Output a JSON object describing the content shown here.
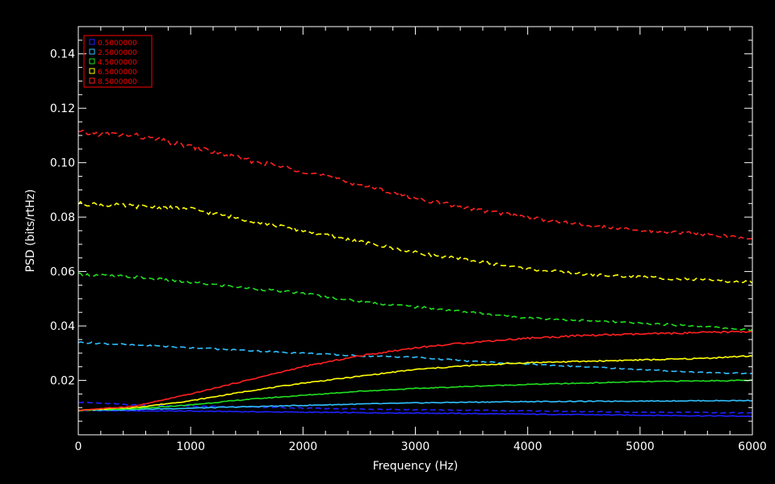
{
  "chart_data": {
    "type": "line",
    "title": "",
    "xlabel": "Frequency (Hz)",
    "ylabel": "PSD (bits/rtHz)",
    "xlim": [
      0,
      6000
    ],
    "ylim": [
      0,
      0.15
    ],
    "grid": false,
    "background": "#000000",
    "axis_color": "#ffffff",
    "x_ticks": [
      0,
      1000,
      2000,
      3000,
      4000,
      5000,
      6000
    ],
    "x_tick_labels": [
      "0",
      "1000",
      "2000",
      "3000",
      "4000",
      "5000",
      "6000"
    ],
    "y_ticks": [
      0.02,
      0.04,
      0.06,
      0.08,
      0.1,
      0.12,
      0.14
    ],
    "y_tick_labels": [
      "0.02",
      "0.04",
      "0.06",
      "0.08",
      "0.10",
      "0.12",
      "0.14"
    ],
    "legend": {
      "placement": "top-left",
      "border_color": "#ff0000",
      "text_color": "#ff0000",
      "entries": [
        {
          "label": "0.5000000",
          "color": "#2020ff"
        },
        {
          "label": "2.5000000",
          "color": "#30c0ff"
        },
        {
          "label": "4.5000000",
          "color": "#20e020"
        },
        {
          "label": "6.5000000",
          "color": "#ffff00"
        },
        {
          "label": "8.5000000",
          "color": "#ff2020"
        }
      ]
    },
    "x": [
      0,
      500,
      1000,
      1500,
      2000,
      2500,
      3000,
      3500,
      4000,
      4500,
      5000,
      5500,
      6000
    ],
    "series": [
      {
        "name": "0.5000000",
        "style": "solid",
        "color": "#2020ff",
        "values": [
          0.009,
          0.0088,
          0.0087,
          0.0085,
          0.0083,
          0.0081,
          0.008,
          0.0078,
          0.0076,
          0.0074,
          0.0072,
          0.007,
          0.0068
        ]
      },
      {
        "name": "0.5000000",
        "style": "dashed",
        "color": "#2020ff",
        "values": [
          0.012,
          0.011,
          0.0105,
          0.0102,
          0.0098,
          0.0095,
          0.0092,
          0.009,
          0.0088,
          0.0085,
          0.0083,
          0.0082,
          0.008
        ]
      },
      {
        "name": "2.5000000",
        "style": "solid",
        "color": "#30c0ff",
        "values": [
          0.009,
          0.0093,
          0.0098,
          0.0103,
          0.0108,
          0.0113,
          0.0117,
          0.012,
          0.0122,
          0.0123,
          0.0124,
          0.0125,
          0.0126
        ]
      },
      {
        "name": "2.5000000",
        "style": "dashed",
        "color": "#30c0ff",
        "values": [
          0.034,
          0.033,
          0.032,
          0.031,
          0.03,
          0.029,
          0.0285,
          0.027,
          0.026,
          0.025,
          0.024,
          0.023,
          0.0225
        ]
      },
      {
        "name": "4.5000000",
        "style": "solid",
        "color": "#20e020",
        "values": [
          0.009,
          0.0095,
          0.011,
          0.013,
          0.0145,
          0.016,
          0.017,
          0.0178,
          0.0185,
          0.019,
          0.0195,
          0.0198,
          0.02
        ]
      },
      {
        "name": "4.5000000",
        "style": "dashed",
        "color": "#20e020",
        "values": [
          0.059,
          0.058,
          0.056,
          0.054,
          0.052,
          0.049,
          0.047,
          0.045,
          0.043,
          0.042,
          0.041,
          0.04,
          0.0385
        ]
      },
      {
        "name": "6.5000000",
        "style": "solid",
        "color": "#ffff00",
        "values": [
          0.009,
          0.01,
          0.0125,
          0.016,
          0.019,
          0.0215,
          0.024,
          0.0255,
          0.0265,
          0.027,
          0.0275,
          0.028,
          0.029
        ]
      },
      {
        "name": "6.5000000",
        "style": "dashed",
        "color": "#ffff00",
        "values": [
          0.085,
          0.084,
          0.083,
          0.079,
          0.075,
          0.071,
          0.067,
          0.064,
          0.061,
          0.059,
          0.058,
          0.057,
          0.056
        ]
      },
      {
        "name": "8.5000000",
        "style": "solid",
        "color": "#ff2020",
        "values": [
          0.009,
          0.0105,
          0.015,
          0.02,
          0.025,
          0.029,
          0.032,
          0.034,
          0.0355,
          0.0365,
          0.037,
          0.0375,
          0.038
        ]
      },
      {
        "name": "8.5000000",
        "style": "dashed",
        "color": "#ff2020",
        "values": [
          0.111,
          0.11,
          0.106,
          0.101,
          0.097,
          0.092,
          0.087,
          0.083,
          0.08,
          0.077,
          0.075,
          0.074,
          0.072
        ]
      }
    ]
  }
}
